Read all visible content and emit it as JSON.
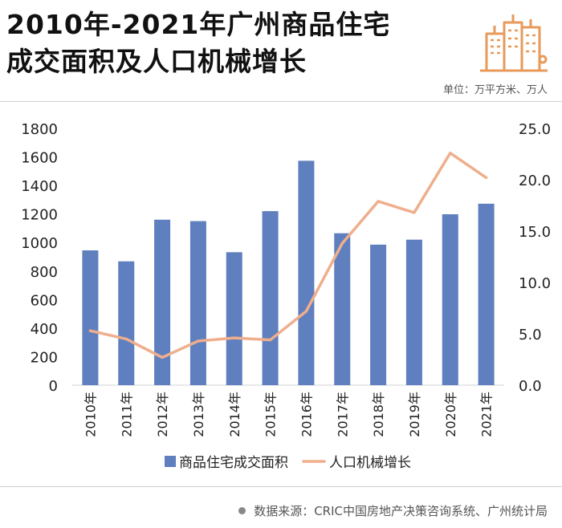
{
  "header": {
    "title_line1": "2010年-2021年广州商品住宅",
    "title_line2": "成交面积及人口机械增长",
    "unit": "单位：万平方米、万人"
  },
  "source": {
    "text": "数据来源：CRIC中国房地产决策咨询系统、广州统计局"
  },
  "colors": {
    "bar": "#5f7fbf",
    "line": "#efae8c",
    "logo": "#e79a5a"
  },
  "chart_data": {
    "type": "bar+line",
    "title": "2010年-2021年广州商品住宅成交面积及人口机械增长",
    "categories": [
      "2010年",
      "2011年",
      "2012年",
      "2013年",
      "2014年",
      "2015年",
      "2016年",
      "2017年",
      "2018年",
      "2019年",
      "2020年",
      "2021年"
    ],
    "series": [
      {
        "name": "商品住宅成交面积",
        "type": "bar",
        "axis": "left",
        "values": [
          945,
          868,
          1160,
          1150,
          932,
          1220,
          1573,
          1065,
          985,
          1020,
          1198,
          1272
        ]
      },
      {
        "name": "人口机械增长",
        "type": "line",
        "axis": "right",
        "values": [
          5.3,
          4.5,
          2.7,
          4.3,
          4.6,
          4.4,
          7.2,
          13.8,
          17.9,
          16.8,
          22.6,
          20.2
        ]
      }
    ],
    "y_left": {
      "min": 0,
      "max": 1800,
      "ticks": [
        "0",
        "200",
        "400",
        "600",
        "800",
        "1000",
        "1200",
        "1400",
        "1600",
        "1800"
      ]
    },
    "y_right": {
      "min": 0,
      "max": 25,
      "ticks": [
        "0.0",
        "5.0",
        "10.0",
        "15.0",
        "20.0",
        "25.0"
      ]
    },
    "legend": {
      "position": "bottom"
    }
  }
}
